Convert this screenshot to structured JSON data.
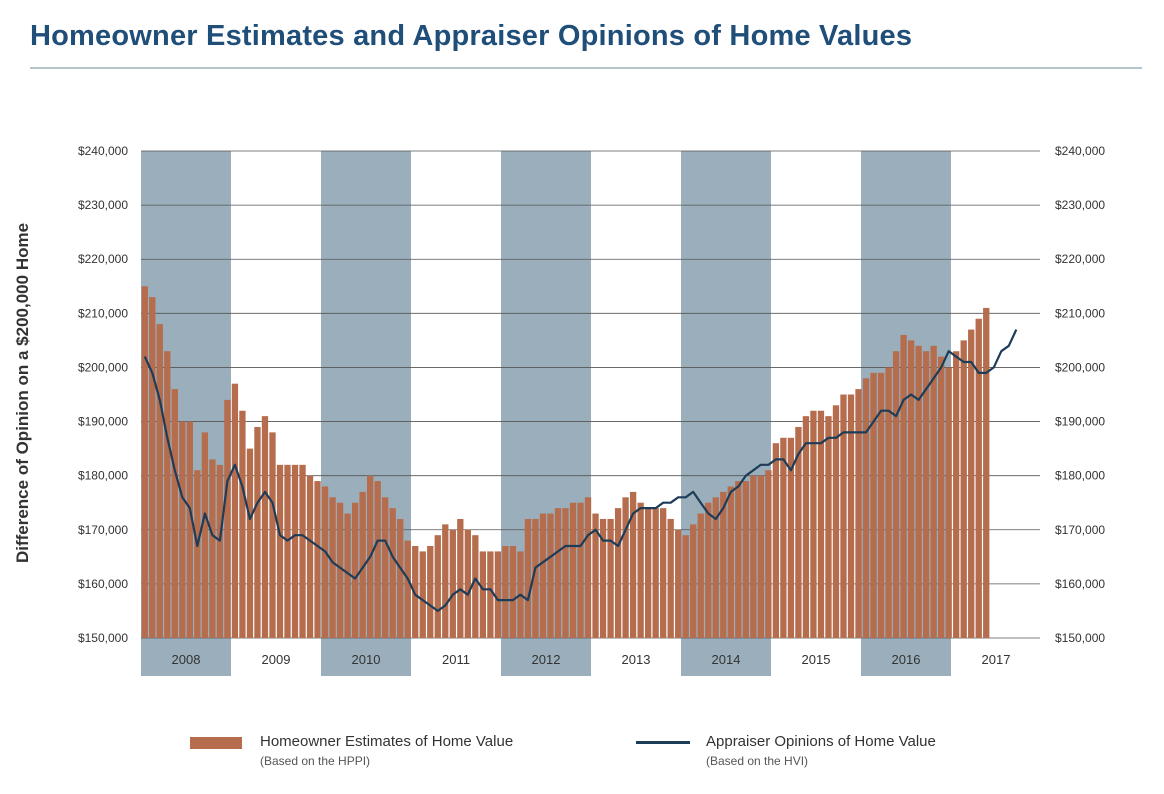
{
  "page": {
    "title": "Homeowner Estimates and Appraiser Opinions of Home Values"
  },
  "colors": {
    "title": "#1f4e79",
    "bar": "#b56d4d",
    "line": "#1d3c58",
    "band": "#9aafbb",
    "grid": "#555555"
  },
  "legend": {
    "bars_label": "Homeowner Estimates of Home Value",
    "bars_sub": "(Based on the HPPI)",
    "line_label": "Appraiser Opinions of Home Value",
    "line_sub": "(Based on the HVI)"
  },
  "chart_data": {
    "type": "bar",
    "title": "Homeowner Estimates and Appraiser Opinions of Home Values",
    "ylabel": "Difference of Opinion on a $200,000 Home",
    "ylim": [
      150000,
      240000
    ],
    "yticks": [
      150000,
      160000,
      170000,
      180000,
      190000,
      200000,
      210000,
      220000,
      230000,
      240000
    ],
    "ytick_labels": [
      "$150,000",
      "$160,000",
      "$170,000",
      "$180,000",
      "$190,000",
      "$200,000",
      "$210,000",
      "$220,000",
      "$230,000",
      "$240,000"
    ],
    "years": [
      "2008",
      "2009",
      "2010",
      "2011",
      "2012",
      "2013",
      "2014",
      "2015",
      "2016",
      "2017"
    ],
    "shaded_years": [
      "2008",
      "2010",
      "2012",
      "2014",
      "2016"
    ],
    "x_unit": "month",
    "x_start": "2008-01",
    "series": [
      {
        "name": "Homeowner Estimates of Home Value",
        "note": "(Based on the HPPI)",
        "kind": "bar",
        "values": [
          215000,
          213000,
          208000,
          203000,
          196000,
          190000,
          190000,
          181000,
          188000,
          183000,
          182000,
          194000,
          197000,
          192000,
          185000,
          189000,
          191000,
          188000,
          182000,
          182000,
          182000,
          182000,
          180000,
          179000,
          178000,
          176000,
          175000,
          173000,
          175000,
          177000,
          180000,
          179000,
          176000,
          174000,
          172000,
          168000,
          167000,
          166000,
          167000,
          169000,
          171000,
          170000,
          172000,
          170000,
          169000,
          166000,
          166000,
          166000,
          167000,
          167000,
          166000,
          172000,
          172000,
          173000,
          173000,
          174000,
          174000,
          175000,
          175000,
          176000,
          173000,
          172000,
          172000,
          174000,
          176000,
          177000,
          175000,
          174000,
          174000,
          174000,
          172000,
          170000,
          169000,
          171000,
          173000,
          175000,
          176000,
          177000,
          178000,
          179000,
          179000,
          180000,
          180000,
          181000,
          186000,
          187000,
          187000,
          189000,
          191000,
          192000,
          192000,
          191000,
          193000,
          195000,
          195000,
          196000,
          198000,
          199000,
          199000,
          200000,
          203000,
          206000,
          205000,
          204000,
          203000,
          204000,
          202000,
          200000,
          203000,
          205000,
          207000,
          209000,
          211000
        ]
      },
      {
        "name": "Appraiser Opinions of Home Value",
        "note": "(Based on the HVI)",
        "kind": "line",
        "values": [
          202000,
          199000,
          194000,
          187000,
          181000,
          176000,
          174000,
          167000,
          173000,
          169000,
          168000,
          179000,
          182000,
          178000,
          172000,
          175000,
          177000,
          175000,
          169000,
          168000,
          169000,
          169000,
          168000,
          167000,
          166000,
          164000,
          163000,
          162000,
          161000,
          163000,
          165000,
          168000,
          168000,
          165000,
          163000,
          161000,
          158000,
          157000,
          156000,
          155000,
          156000,
          158000,
          159000,
          158000,
          161000,
          159000,
          159000,
          157000,
          157000,
          157000,
          158000,
          157000,
          163000,
          164000,
          165000,
          166000,
          167000,
          167000,
          167000,
          169000,
          170000,
          168000,
          168000,
          167000,
          170000,
          173000,
          174000,
          174000,
          174000,
          175000,
          175000,
          176000,
          176000,
          177000,
          175000,
          173000,
          172000,
          174000,
          177000,
          178000,
          180000,
          181000,
          182000,
          182000,
          183000,
          183000,
          181000,
          184000,
          186000,
          186000,
          186000,
          187000,
          187000,
          188000,
          188000,
          188000,
          188000,
          190000,
          192000,
          192000,
          191000,
          194000,
          195000,
          194000,
          196000,
          198000,
          200000,
          203000,
          202000,
          201000,
          201000,
          199000,
          199000,
          200000,
          203000,
          204000,
          207000
        ]
      }
    ],
    "legend": "bottom"
  }
}
